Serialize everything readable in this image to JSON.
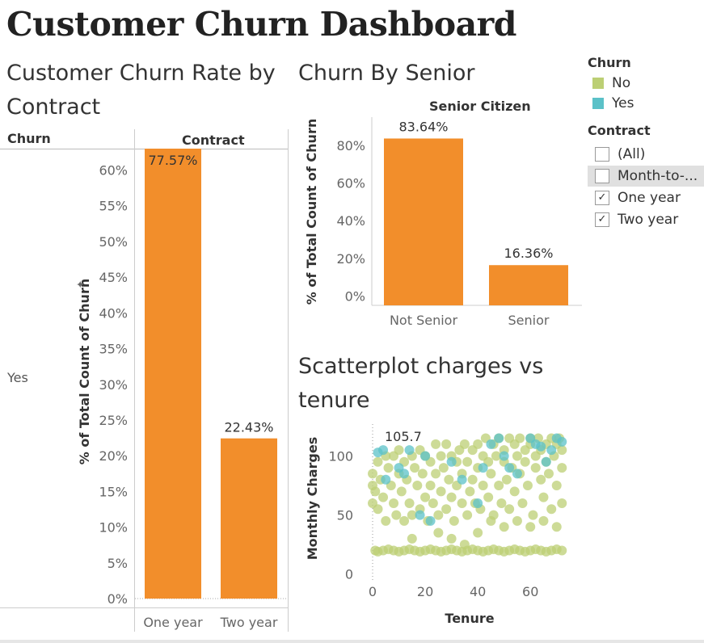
{
  "dashboard_title": "Customer Churn Dashboard",
  "sheets": {
    "contract": {
      "title_line1": "Customer Churn Rate by",
      "title_line2": "Contract",
      "row_header": "Churn",
      "col_header": "Contract",
      "row_label": "Yes",
      "axis_label": "% of Total Count of Churn"
    },
    "senior": {
      "title": "Churn By Senior",
      "col_header": "Senior Citizen",
      "axis_label": "% of Total Count of Churn"
    },
    "scatter": {
      "title_line1": "Scatterplot charges vs",
      "title_line2": "tenure",
      "xlabel": "Tenure",
      "ylabel": "Monthly Charges",
      "annotation": "105.7"
    }
  },
  "legend": {
    "title": "Churn",
    "items": [
      {
        "label": "No",
        "color": "#bccf74"
      },
      {
        "label": "Yes",
        "color": "#5bc1c8"
      }
    ]
  },
  "filter": {
    "title": "Contract",
    "options": [
      {
        "label": "(All)",
        "checked": false,
        "highlighted": false
      },
      {
        "label": "Month-to-...",
        "checked": false,
        "highlighted": true
      },
      {
        "label": "One year",
        "checked": true,
        "highlighted": false
      },
      {
        "label": "Two year",
        "checked": true,
        "highlighted": false
      }
    ]
  },
  "chart_data": [
    {
      "type": "bar",
      "title": "Customer Churn Rate by Contract",
      "categories": [
        "One year",
        "Two year"
      ],
      "values": [
        77.57,
        22.43
      ],
      "data_labels": [
        "77.57%",
        "22.43%"
      ],
      "ylabel": "% of Total Count of Churn",
      "xlabel": "Contract",
      "ylim": [
        0,
        63
      ],
      "yticks": [
        "0%",
        "5%",
        "10%",
        "15%",
        "20%",
        "25%",
        "30%",
        "35%",
        "40%",
        "45%",
        "50%",
        "55%",
        "60%"
      ],
      "color": "#f28e2b"
    },
    {
      "type": "bar",
      "title": "Churn By Senior",
      "categories": [
        "Not Senior",
        "Senior"
      ],
      "values": [
        83.64,
        16.36
      ],
      "data_labels": [
        "83.64%",
        "16.36%"
      ],
      "ylabel": "% of Total Count of Churn",
      "xlabel": "Senior Citizen",
      "ylim": [
        -5,
        95
      ],
      "yticks": [
        "0%",
        "20%",
        "40%",
        "60%",
        "80%"
      ],
      "color": "#f28e2b"
    },
    {
      "type": "scatter",
      "title": "Scatterplot charges vs tenure",
      "xlabel": "Tenure",
      "ylabel": "Monthly Charges",
      "xlim": [
        -4,
        75
      ],
      "ylim": [
        -5,
        127
      ],
      "xticks": [
        "0",
        "20",
        "40",
        "60"
      ],
      "yticks": [
        "0",
        "50",
        "100"
      ],
      "annotation": {
        "text": "105.7",
        "x": 1,
        "y": 105.7
      },
      "series": [
        {
          "name": "No",
          "color": "#bccf74",
          "points": [
            [
              1,
              20
            ],
            [
              2,
              19
            ],
            [
              4,
              20
            ],
            [
              6,
              21
            ],
            [
              8,
              20
            ],
            [
              10,
              19
            ],
            [
              12,
              20
            ],
            [
              14,
              21
            ],
            [
              16,
              20
            ],
            [
              18,
              19
            ],
            [
              20,
              20
            ],
            [
              22,
              21
            ],
            [
              24,
              20
            ],
            [
              26,
              19
            ],
            [
              28,
              20
            ],
            [
              30,
              21
            ],
            [
              32,
              20
            ],
            [
              34,
              19
            ],
            [
              36,
              20
            ],
            [
              38,
              21
            ],
            [
              40,
              20
            ],
            [
              42,
              19
            ],
            [
              44,
              20
            ],
            [
              46,
              21
            ],
            [
              48,
              20
            ],
            [
              50,
              19
            ],
            [
              52,
              20
            ],
            [
              54,
              21
            ],
            [
              56,
              20
            ],
            [
              58,
              19
            ],
            [
              60,
              20
            ],
            [
              62,
              21
            ],
            [
              64,
              20
            ],
            [
              66,
              19
            ],
            [
              68,
              20
            ],
            [
              70,
              21
            ],
            [
              72,
              20
            ],
            [
              0,
              60
            ],
            [
              0,
              75
            ],
            [
              0,
              85
            ],
            [
              1,
              70
            ],
            [
              2,
              55
            ],
            [
              2,
              95
            ],
            [
              3,
              80
            ],
            [
              4,
              65
            ],
            [
              5,
              100
            ],
            [
              5,
              45
            ],
            [
              6,
              90
            ],
            [
              7,
              75
            ],
            [
              8,
              60
            ],
            [
              8,
              100
            ],
            [
              9,
              50
            ],
            [
              10,
              85
            ],
            [
              10,
              105
            ],
            [
              11,
              70
            ],
            [
              12,
              95
            ],
            [
              12,
              45
            ],
            [
              13,
              80
            ],
            [
              14,
              60
            ],
            [
              15,
              100
            ],
            [
              15,
              50
            ],
            [
              16,
              90
            ],
            [
              17,
              75
            ],
            [
              18,
              55
            ],
            [
              18,
              105
            ],
            [
              19,
              85
            ],
            [
              20,
              65
            ],
            [
              20,
              100
            ],
            [
              21,
              45
            ],
            [
              22,
              95
            ],
            [
              22,
              75
            ],
            [
              23,
              60
            ],
            [
              24,
              110
            ],
            [
              24,
              85
            ],
            [
              25,
              50
            ],
            [
              26,
              100
            ],
            [
              26,
              70
            ],
            [
              27,
              90
            ],
            [
              28,
              55
            ],
            [
              28,
              110
            ],
            [
              29,
              80
            ],
            [
              30,
              100
            ],
            [
              30,
              65
            ],
            [
              31,
              45
            ],
            [
              32,
              95
            ],
            [
              32,
              75
            ],
            [
              33,
              105
            ],
            [
              34,
              60
            ],
            [
              34,
              85
            ],
            [
              35,
              110
            ],
            [
              36,
              50
            ],
            [
              36,
              95
            ],
            [
              37,
              70
            ],
            [
              38,
              105
            ],
            [
              38,
              80
            ],
            [
              39,
              60
            ],
            [
              40,
              110
            ],
            [
              40,
              90
            ],
            [
              41,
              55
            ],
            [
              42,
              100
            ],
            [
              42,
              75
            ],
            [
              43,
              115
            ],
            [
              44,
              65
            ],
            [
              44,
              95
            ],
            [
              45,
              85
            ],
            [
              46,
              110
            ],
            [
              46,
              50
            ],
            [
              47,
              100
            ],
            [
              48,
              75
            ],
            [
              48,
              115
            ],
            [
              49,
              60
            ],
            [
              50,
              95
            ],
            [
              50,
              105
            ],
            [
              51,
              80
            ],
            [
              52,
              115
            ],
            [
              52,
              55
            ],
            [
              53,
              90
            ],
            [
              54,
              110
            ],
            [
              54,
              70
            ],
            [
              55,
              100
            ],
            [
              56,
              115
            ],
            [
              56,
              85
            ],
            [
              57,
              60
            ],
            [
              58,
              105
            ],
            [
              58,
              95
            ],
            [
              59,
              75
            ],
            [
              60,
              115
            ],
            [
              60,
              110
            ],
            [
              61,
              50
            ],
            [
              62,
              100
            ],
            [
              62,
              90
            ],
            [
              63,
              115
            ],
            [
              64,
              80
            ],
            [
              64,
              105
            ],
            [
              65,
              65
            ],
            [
              66,
              110
            ],
            [
              66,
              95
            ],
            [
              67,
              85
            ],
            [
              68,
              115
            ],
            [
              68,
              55
            ],
            [
              69,
              100
            ],
            [
              70,
              110
            ],
            [
              70,
              75
            ],
            [
              71,
              115
            ],
            [
              72,
              90
            ],
            [
              72,
              105
            ],
            [
              72,
              60
            ],
            [
              45,
              45
            ],
            [
              50,
              40
            ],
            [
              55,
              45
            ],
            [
              60,
              40
            ],
            [
              65,
              45
            ],
            [
              70,
              40
            ],
            [
              40,
              35
            ],
            [
              30,
              30
            ],
            [
              35,
              25
            ],
            [
              25,
              35
            ],
            [
              15,
              30
            ]
          ]
        },
        {
          "name": "Yes",
          "color": "#5bc1c8",
          "points": [
            [
              4,
              105
            ],
            [
              14,
              105
            ],
            [
              2,
              103
            ],
            [
              5,
              80
            ],
            [
              10,
              90
            ],
            [
              12,
              85
            ],
            [
              20,
              100
            ],
            [
              30,
              95
            ],
            [
              34,
              80
            ],
            [
              42,
              90
            ],
            [
              45,
              110
            ],
            [
              50,
              100
            ],
            [
              52,
              90
            ],
            [
              55,
              85
            ],
            [
              60,
              115
            ],
            [
              62,
              110
            ],
            [
              66,
              95
            ],
            [
              68,
              105
            ],
            [
              70,
              115
            ],
            [
              72,
              112
            ],
            [
              22,
              45
            ],
            [
              18,
              50
            ],
            [
              40,
              60
            ],
            [
              64,
              108
            ],
            [
              48,
              115
            ]
          ]
        }
      ]
    }
  ]
}
